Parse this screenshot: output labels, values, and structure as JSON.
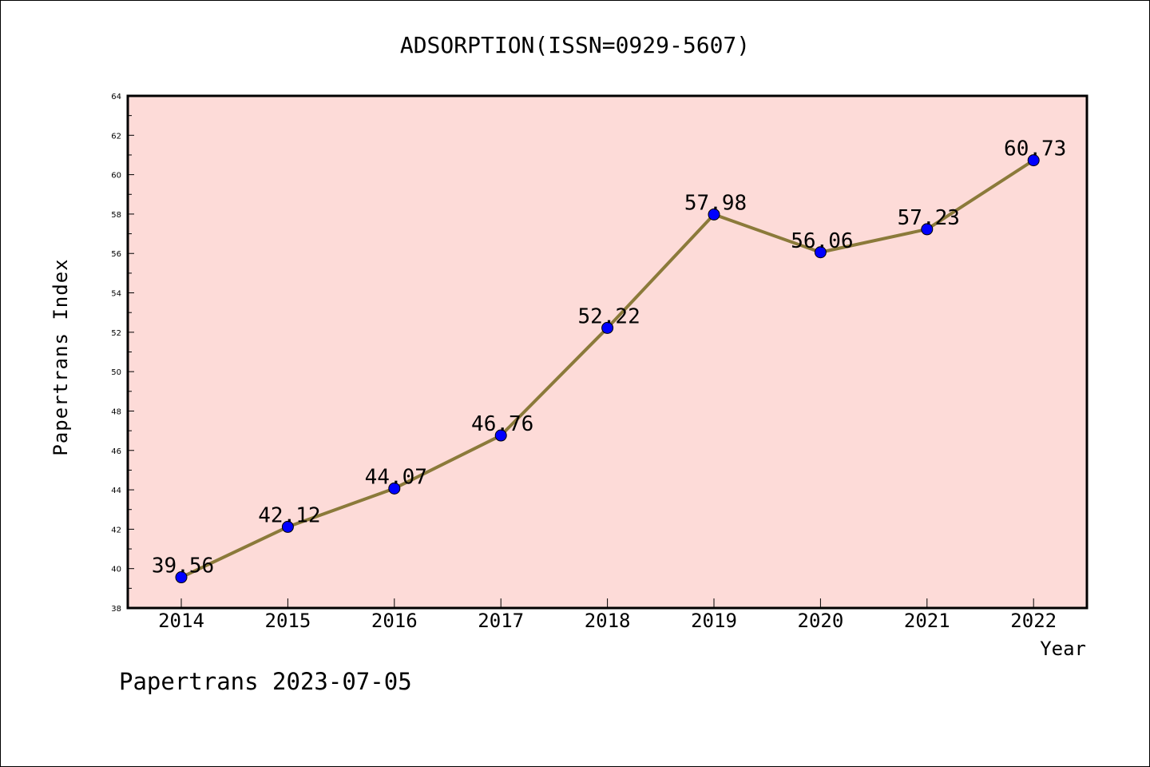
{
  "chart_data": {
    "type": "line",
    "title": "ADSORPTION(ISSN=0929-5607)",
    "xlabel": "Year",
    "ylabel": "Papertrans Index",
    "footer": "Papertrans 2023-07-05",
    "categories": [
      "2014",
      "2015",
      "2016",
      "2017",
      "2018",
      "2019",
      "2020",
      "2021",
      "2022"
    ],
    "series": [
      {
        "values": [
          39.56,
          42.12,
          44.07,
          46.76,
          52.22,
          57.98,
          56.06,
          57.23,
          60.73
        ],
        "labels": [
          "39.56",
          "42.12",
          "44.07",
          "46.76",
          "52.22",
          "57.98",
          "56.06",
          "57.23",
          "60.73"
        ]
      }
    ],
    "ylim": [
      38,
      64
    ],
    "yticks": [
      "38",
      "40",
      "42",
      "44",
      "46",
      "48",
      "50",
      "52",
      "54",
      "56",
      "58",
      "60",
      "62",
      "64"
    ],
    "grid": false,
    "colors": {
      "plot_background": "#fddbd8",
      "line": "#8b7a3a",
      "marker": "#0000ff"
    }
  }
}
